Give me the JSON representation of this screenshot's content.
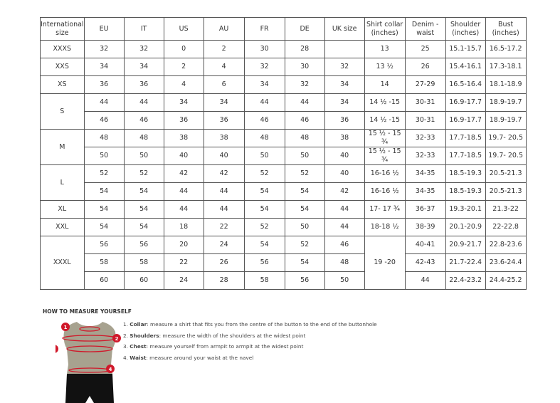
{
  "table": {
    "headers": [
      "International size",
      "EU",
      "IT",
      "US",
      "AU",
      "FR",
      "DE",
      "UK size",
      "Shirt collar (inches)",
      "Denim - waist",
      "Shoulder (inches)",
      "Bust (inches)"
    ],
    "rows": [
      {
        "size": "XXXS",
        "span": 1,
        "cells": [
          "32",
          "32",
          "0",
          "2",
          "30",
          "28",
          ""
        ],
        "collar": "13",
        "collar_span": 1,
        "rest": [
          "25",
          "15.1-15.7",
          "16.5-17.2"
        ]
      },
      {
        "size": "XXS",
        "span": 1,
        "cells": [
          "34",
          "34",
          "2",
          "4",
          "32",
          "30",
          "32"
        ],
        "collar": "13 ½",
        "collar_span": 1,
        "rest": [
          "26",
          "15.4-16.1",
          "17.3-18.1"
        ]
      },
      {
        "size": "XS",
        "span": 1,
        "cells": [
          "36",
          "36",
          "4",
          "6",
          "34",
          "32",
          "34"
        ],
        "collar": "14",
        "collar_span": 1,
        "rest": [
          "27-29",
          "16.5-16.4",
          "18.1-18.9"
        ]
      },
      {
        "size": "S",
        "span": 2,
        "cells": [
          "44",
          "44",
          "34",
          "34",
          "44",
          "44",
          "34"
        ],
        "collar": "14 ½ -15",
        "collar_span": 1,
        "rest": [
          "30-31",
          "16.9-17.7",
          "18.9-19.7"
        ]
      },
      {
        "size": null,
        "cells": [
          "46",
          "46",
          "36",
          "36",
          "46",
          "46",
          "36"
        ],
        "collar": "14 ½ -15",
        "collar_span": 1,
        "rest": [
          "30-31",
          "16.9-17.7",
          "18.9-19.7"
        ]
      },
      {
        "size": "M",
        "span": 2,
        "cells": [
          "48",
          "48",
          "38",
          "38",
          "48",
          "48",
          "38"
        ],
        "collar": "15 ½ - 15 ¾",
        "collar_span": 1,
        "rest": [
          "32-33",
          "17.7-18.5",
          "19.7- 20.5"
        ]
      },
      {
        "size": null,
        "cells": [
          "50",
          "50",
          "40",
          "40",
          "50",
          "50",
          "40"
        ],
        "collar": "15 ½ - 15 ¾",
        "collar_span": 1,
        "rest": [
          "32-33",
          "17.7-18.5",
          "19.7- 20.5"
        ]
      },
      {
        "size": "L",
        "span": 2,
        "cells": [
          "52",
          "52",
          "42",
          "42",
          "52",
          "52",
          "40"
        ],
        "collar": "16-16 ½",
        "collar_span": 1,
        "rest": [
          "34-35",
          "18.5-19.3",
          "20.5-21.3"
        ]
      },
      {
        "size": null,
        "cells": [
          "54",
          "54",
          "44",
          "44",
          "54",
          "54",
          "42"
        ],
        "collar": "16-16 ½",
        "collar_span": 1,
        "rest": [
          "34-35",
          "18.5-19.3",
          "20.5-21.3"
        ]
      },
      {
        "size": "XL",
        "span": 1,
        "cells": [
          "54",
          "54",
          "44",
          "44",
          "54",
          "54",
          "44"
        ],
        "collar": "17- 17 ¾",
        "collar_span": 1,
        "rest": [
          "36-37",
          "19.3-20.1",
          "21.3-22"
        ]
      },
      {
        "size": "XXL",
        "span": 1,
        "cells": [
          "54",
          "54",
          "18",
          "22",
          "52",
          "50",
          "44"
        ],
        "collar": "18-18 ½",
        "collar_span": 1,
        "rest": [
          "38-39",
          "20.1-20.9",
          "22-22.8"
        ]
      },
      {
        "size": "XXXL",
        "span": 3,
        "cells": [
          "56",
          "56",
          "20",
          "24",
          "54",
          "52",
          "46"
        ],
        "collar": "19 -20",
        "collar_span": 3,
        "rest": [
          "40-41",
          "20.9-21.7",
          "22.8-23.6"
        ]
      },
      {
        "size": null,
        "cells": [
          "58",
          "58",
          "22",
          "26",
          "56",
          "54",
          "48"
        ],
        "collar": null,
        "rest": [
          "42-43",
          "21.7-22.4",
          "23.6-24.4"
        ]
      },
      {
        "size": null,
        "cells": [
          "60",
          "60",
          "24",
          "28",
          "58",
          "56",
          "50"
        ],
        "collar": null,
        "rest": [
          "44",
          "22.4-23.2",
          "24.4-25.2"
        ]
      }
    ]
  },
  "howto": {
    "title": "HOW TO MEASURE YOURSELF",
    "steps": [
      {
        "num": "1.",
        "term": "Collar",
        "text": ": measure a shirt that fits you from the centre of the button to the end of the buttonhole"
      },
      {
        "num": "2.",
        "term": "Shoulders",
        "text": ": measure the width of the shoulders at the widest point"
      },
      {
        "num": "3.",
        "term": "Chest",
        "text": ": measure yourself from armpit to armpit at the widest point"
      },
      {
        "num": "4.",
        "term": "Waist",
        "text": ": measure around your waist at the navel"
      }
    ],
    "markers": [
      "1",
      "2",
      "3",
      "4"
    ],
    "colors": {
      "marker": "#d0182a",
      "torso": "#a7a28f",
      "shorts": "#111111"
    }
  }
}
